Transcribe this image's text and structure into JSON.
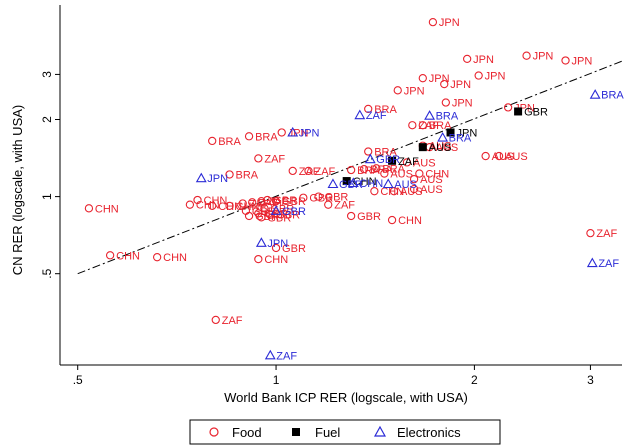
{
  "chart_data": {
    "type": "scatter",
    "xlabel": "World Bank ICP RER (logscale, with USA)",
    "ylabel": "CN RER (logscale, with USA)",
    "x_scale": "log",
    "y_scale": "log",
    "xlim": [
      0.47,
      3.35
    ],
    "ylim": [
      0.22,
      5.6
    ],
    "x_ticks": [
      {
        "value": 0.5,
        "label": ".5"
      },
      {
        "value": 1,
        "label": "1"
      },
      {
        "value": 2,
        "label": "2"
      },
      {
        "value": 3,
        "label": "3"
      }
    ],
    "y_ticks": [
      {
        "value": 0.5,
        "label": ".5"
      },
      {
        "value": 1,
        "label": "1"
      },
      {
        "value": 2,
        "label": "2"
      },
      {
        "value": 3,
        "label": "3"
      }
    ],
    "grid": false,
    "fit_line": {
      "style": "dash-dot",
      "points": [
        [
          0.5,
          0.5
        ],
        [
          3.35,
          3.38
        ]
      ]
    },
    "legend": {
      "position": "bottom",
      "entries": [
        {
          "name": "Food",
          "marker": "circle",
          "color": "#e8232e"
        },
        {
          "name": "Fuel",
          "marker": "square",
          "color": "#000000"
        },
        {
          "name": "Electronics",
          "marker": "triangle",
          "color": "#2b2bd6"
        }
      ]
    },
    "series": [
      {
        "name": "Food",
        "marker": "circle",
        "color": "#e8232e",
        "points": [
          {
            "x": 1.73,
            "y": 4.8,
            "label": "JPN"
          },
          {
            "x": 1.95,
            "y": 3.45,
            "label": "JPN"
          },
          {
            "x": 2.4,
            "y": 3.55,
            "label": "JPN"
          },
          {
            "x": 2.75,
            "y": 3.4,
            "label": "JPN"
          },
          {
            "x": 2.03,
            "y": 2.97,
            "label": "JPN"
          },
          {
            "x": 1.67,
            "y": 2.9,
            "label": "JPN"
          },
          {
            "x": 1.8,
            "y": 2.75,
            "label": "JPN"
          },
          {
            "x": 1.53,
            "y": 2.6,
            "label": "JPN"
          },
          {
            "x": 1.81,
            "y": 2.33,
            "label": "JPN"
          },
          {
            "x": 2.25,
            "y": 2.23,
            "label": "JPN"
          },
          {
            "x": 1.38,
            "y": 2.2,
            "label": "BRA"
          },
          {
            "x": 1.61,
            "y": 1.9,
            "label": "ZAF"
          },
          {
            "x": 1.67,
            "y": 1.9,
            "label": "BRA"
          },
          {
            "x": 0.8,
            "y": 1.65,
            "label": "BRA"
          },
          {
            "x": 0.91,
            "y": 1.72,
            "label": "BRA"
          },
          {
            "x": 1.02,
            "y": 1.78,
            "label": "JPN"
          },
          {
            "x": 1.38,
            "y": 1.5,
            "label": "BRA"
          },
          {
            "x": 0.94,
            "y": 1.41,
            "label": "ZAF"
          },
          {
            "x": 0.85,
            "y": 1.22,
            "label": "BRA"
          },
          {
            "x": 1.06,
            "y": 1.26,
            "label": "ZAF"
          },
          {
            "x": 1.12,
            "y": 1.26,
            "label": "ZAF"
          },
          {
            "x": 1.3,
            "y": 1.27,
            "label": "BRA"
          },
          {
            "x": 1.36,
            "y": 1.28,
            "label": "BRA"
          },
          {
            "x": 1.42,
            "y": 1.29,
            "label": "BRA"
          },
          {
            "x": 1.58,
            "y": 1.36,
            "label": "AUS"
          },
          {
            "x": 1.67,
            "y": 1.58,
            "label": "AUS"
          },
          {
            "x": 1.71,
            "y": 1.56,
            "label": "AUS"
          },
          {
            "x": 2.08,
            "y": 1.44,
            "label": "AUS"
          },
          {
            "x": 2.18,
            "y": 1.44,
            "label": "AUS"
          },
          {
            "x": 1.46,
            "y": 1.23,
            "label": "AUS"
          },
          {
            "x": 1.62,
            "y": 1.17,
            "label": "AUS"
          },
          {
            "x": 1.65,
            "y": 1.23,
            "label": "CHN"
          },
          {
            "x": 1.41,
            "y": 1.05,
            "label": "CHN"
          },
          {
            "x": 1.51,
            "y": 1.05,
            "label": "AUS"
          },
          {
            "x": 1.62,
            "y": 1.07,
            "label": "AUS"
          },
          {
            "x": 1.1,
            "y": 0.99,
            "label": "GBR"
          },
          {
            "x": 1.16,
            "y": 1.0,
            "label": "GBR"
          },
          {
            "x": 1.2,
            "y": 0.93,
            "label": "ZAF"
          },
          {
            "x": 0.52,
            "y": 0.9,
            "label": "CHN"
          },
          {
            "x": 0.74,
            "y": 0.93,
            "label": "CHN"
          },
          {
            "x": 0.76,
            "y": 0.97,
            "label": "CHN"
          },
          {
            "x": 0.8,
            "y": 0.92,
            "label": "CHN"
          },
          {
            "x": 0.85,
            "y": 0.92,
            "label": "CHN"
          },
          {
            "x": 0.89,
            "y": 0.94,
            "label": "ZAF"
          },
          {
            "x": 0.92,
            "y": 0.95,
            "label": "ZAF"
          },
          {
            "x": 0.95,
            "y": 0.96,
            "label": "ZAF"
          },
          {
            "x": 0.97,
            "y": 0.97,
            "label": "GBR"
          },
          {
            "x": 1.0,
            "y": 0.96,
            "label": "GBR"
          },
          {
            "x": 0.9,
            "y": 0.88,
            "label": "GBR"
          },
          {
            "x": 0.94,
            "y": 0.86,
            "label": "GBR"
          },
          {
            "x": 0.96,
            "y": 0.9,
            "label": "GBR"
          },
          {
            "x": 0.98,
            "y": 0.85,
            "label": "GBR"
          },
          {
            "x": 0.91,
            "y": 0.84,
            "label": "GBR"
          },
          {
            "x": 0.95,
            "y": 0.83,
            "label": "GBR"
          },
          {
            "x": 1.3,
            "y": 0.84,
            "label": "GBR"
          },
          {
            "x": 1.5,
            "y": 0.81,
            "label": "CHN"
          },
          {
            "x": 0.56,
            "y": 0.59,
            "label": "CHN"
          },
          {
            "x": 0.66,
            "y": 0.58,
            "label": "CHN"
          },
          {
            "x": 0.94,
            "y": 0.57,
            "label": "CHN"
          },
          {
            "x": 1.0,
            "y": 0.63,
            "label": "GBR"
          },
          {
            "x": 0.81,
            "y": 0.33,
            "label": "ZAF"
          },
          {
            "x": 3.0,
            "y": 0.72,
            "label": "ZAF"
          }
        ]
      },
      {
        "name": "Fuel",
        "marker": "square",
        "color": "#000000",
        "points": [
          {
            "x": 2.33,
            "y": 2.15,
            "label": "GBR"
          },
          {
            "x": 1.84,
            "y": 1.78,
            "label": "JPN"
          },
          {
            "x": 1.67,
            "y": 1.56,
            "label": "AUS"
          },
          {
            "x": 1.5,
            "y": 1.38,
            "label": "ZAF"
          },
          {
            "x": 1.28,
            "y": 1.15,
            "label": "CHN"
          }
        ]
      },
      {
        "name": "Electronics",
        "marker": "triangle",
        "color": "#2b2bd6",
        "points": [
          {
            "x": 3.05,
            "y": 2.5,
            "label": "BRA"
          },
          {
            "x": 1.71,
            "y": 2.07,
            "label": "BRA"
          },
          {
            "x": 1.34,
            "y": 2.08,
            "label": "ZAF"
          },
          {
            "x": 1.79,
            "y": 1.7,
            "label": "BRA"
          },
          {
            "x": 1.06,
            "y": 1.78,
            "label": "JPN"
          },
          {
            "x": 0.77,
            "y": 1.18,
            "label": "JPN"
          },
          {
            "x": 1.39,
            "y": 1.4,
            "label": "GBR"
          },
          {
            "x": 1.22,
            "y": 1.12,
            "label": "GBR"
          },
          {
            "x": 1.31,
            "y": 1.13,
            "label": "CHN"
          },
          {
            "x": 1.48,
            "y": 1.12,
            "label": "AUS"
          },
          {
            "x": 1.0,
            "y": 0.88,
            "label": "GBR"
          },
          {
            "x": 0.95,
            "y": 0.66,
            "label": "JPN"
          },
          {
            "x": 3.02,
            "y": 0.55,
            "label": "ZAF"
          },
          {
            "x": 0.98,
            "y": 0.24,
            "label": "ZAF"
          }
        ]
      }
    ]
  }
}
